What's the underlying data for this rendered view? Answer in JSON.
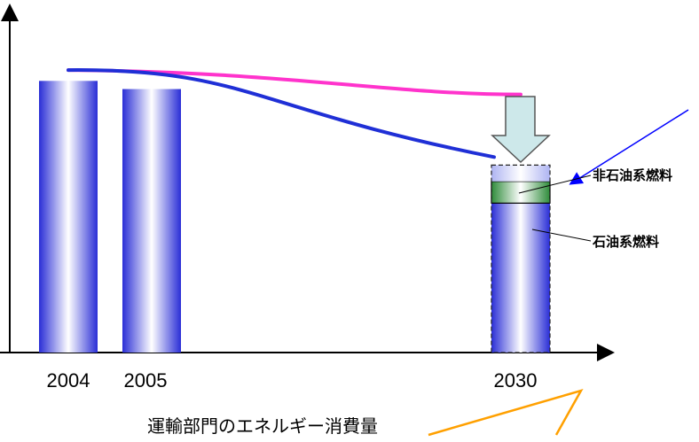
{
  "chart_data": {
    "type": "bar",
    "title": "運輸部門のエネルギー消費量",
    "categories": [
      "2004",
      "2005",
      "2030"
    ],
    "values": [
      100,
      97,
      null
    ],
    "stack_2030": [
      {
        "name": "石油系燃料",
        "value": 55
      },
      {
        "name": "非石油系燃料",
        "value": 8
      },
      {
        "name": "",
        "value": 6
      }
    ],
    "lines": [
      {
        "x": [
          "2004",
          "2030"
        ],
        "y": [
          104,
          95
        ],
        "color": "#ff33cc"
      },
      {
        "x": [
          "2004",
          "2005",
          "2030"
        ],
        "y": [
          104,
          104,
          70
        ],
        "color": "#1f2fd6"
      }
    ],
    "labels": {
      "non_oil": "非石油系燃料",
      "oil": "石油系燃料"
    },
    "ylim": [
      0,
      120
    ],
    "colors": {
      "bar": "#2b2fd8",
      "non_oil": "#2e8b3a",
      "arrow_fill": "#cde8ea",
      "callout": "#ffa000",
      "pointer": "#0000ff"
    }
  }
}
